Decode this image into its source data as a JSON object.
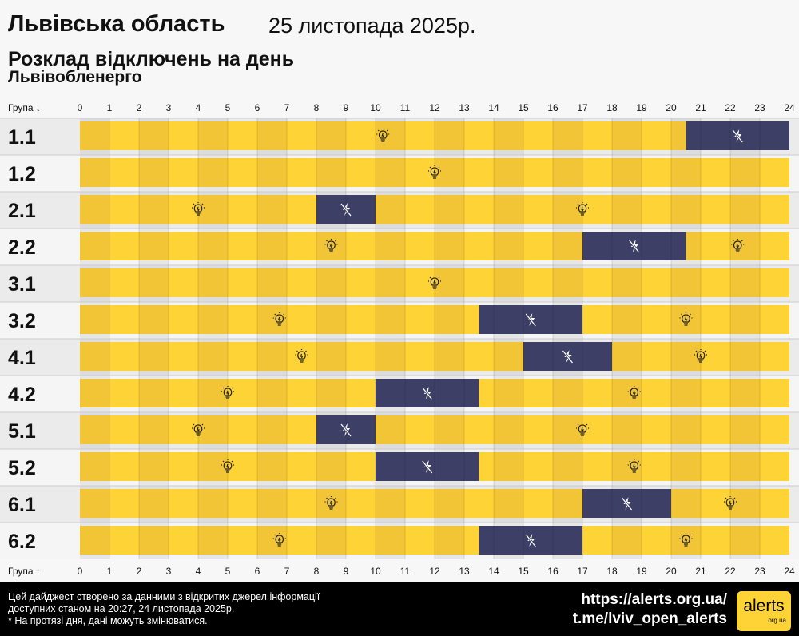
{
  "header": {
    "title": "Львівська область",
    "date": "25 листопада 2025р.",
    "subtitle": "Розклад відключень на день",
    "provider": "Львівобленерго"
  },
  "axis": {
    "top_label": "Група ↓",
    "bottom_label": "Група ↑"
  },
  "chart_data": {
    "type": "timeline",
    "x_range": [
      0,
      24
    ],
    "x_ticks": [
      "0",
      "1",
      "2",
      "3",
      "4",
      "5",
      "6",
      "7",
      "8",
      "9",
      "10",
      "11",
      "12",
      "13",
      "14",
      "15",
      "16",
      "17",
      "18",
      "19",
      "20",
      "21",
      "22",
      "23",
      "24"
    ],
    "groups": [
      {
        "name": "1.1",
        "outages": [
          [
            20.5,
            24
          ]
        ]
      },
      {
        "name": "1.2",
        "outages": []
      },
      {
        "name": "2.1",
        "outages": [
          [
            8,
            10
          ]
        ]
      },
      {
        "name": "2.2",
        "outages": [
          [
            17,
            20.5
          ]
        ]
      },
      {
        "name": "3.1",
        "outages": []
      },
      {
        "name": "3.2",
        "outages": [
          [
            13.5,
            17
          ]
        ]
      },
      {
        "name": "4.1",
        "outages": [
          [
            15,
            18
          ]
        ]
      },
      {
        "name": "4.2",
        "outages": [
          [
            10,
            13.5
          ]
        ]
      },
      {
        "name": "5.1",
        "outages": [
          [
            8,
            10
          ]
        ]
      },
      {
        "name": "5.2",
        "outages": [
          [
            10,
            13.5
          ]
        ]
      },
      {
        "name": "6.1",
        "outages": [
          [
            17,
            20
          ]
        ]
      },
      {
        "name": "6.2",
        "outages": [
          [
            13.5,
            17
          ]
        ]
      }
    ],
    "colors": {
      "power_on_even": "#f2c536",
      "power_on_odd": "#fed335",
      "power_off": "#3d3f66"
    },
    "icons": {
      "power_on": "lightbulb-icon",
      "power_off": "no-power-icon"
    }
  },
  "footer": {
    "note1": "Цей дайджест створено за данними з відкритих джерел інформації",
    "note2": "доступних станом на 20:27, 24 листопада 2025р.",
    "note3": "* На протязі дня, дані можуть змінюватися.",
    "website": "https://alerts.org.ua/",
    "telegram": "t.me/lviv_open_alerts",
    "logo_text": "alerts",
    "logo_sub": "org.ua"
  }
}
